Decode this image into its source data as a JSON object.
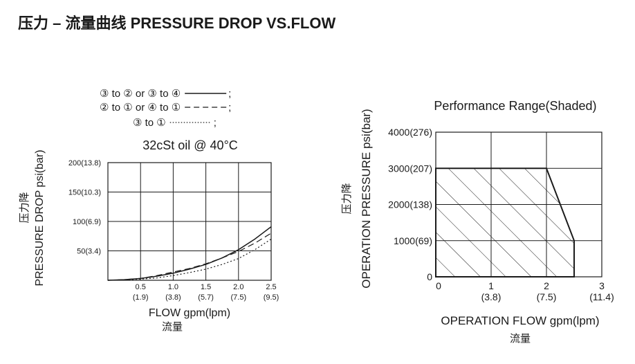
{
  "page": {
    "title": "压力 – 流量曲线 PRESSURE DROP VS.FLOW"
  },
  "chart_data": [
    {
      "type": "line",
      "legend": [
        {
          "label": "③ to ② or ③ to ④",
          "style": "solid",
          "terminator": ";"
        },
        {
          "label": "② to ① or ④ to ①",
          "style": "dashed",
          "terminator": ";"
        },
        {
          "label": "③ to ①",
          "style": "dotted",
          "terminator": ";"
        }
      ],
      "title": "32cSt oil @ 40°C",
      "ylabel": "PRESSURE DROP psi(bar)",
      "ylabel_cn": "压力降",
      "xlabel": "FLOW gpm(lpm)",
      "xlabel_cn": "流量",
      "xlim": [
        0,
        2.5
      ],
      "ylim": [
        0,
        200
      ],
      "x_ticks": [
        {
          "value": 0.5,
          "label": "0.5",
          "sublabel": "(1.9)"
        },
        {
          "value": 1.0,
          "label": "1.0",
          "sublabel": "(3.8)"
        },
        {
          "value": 1.5,
          "label": "1.5",
          "sublabel": "(5.7)"
        },
        {
          "value": 2.0,
          "label": "2.0",
          "sublabel": "(7.5)"
        },
        {
          "value": 2.5,
          "label": "2.5",
          "sublabel": "(9.5)"
        }
      ],
      "y_ticks": [
        {
          "value": 50,
          "label": "50(3.4)"
        },
        {
          "value": 100,
          "label": "100(6.9)"
        },
        {
          "value": 150,
          "label": "150(10.3)"
        },
        {
          "value": 200,
          "label": "200(13.8)"
        }
      ],
      "series": [
        {
          "name": "③ to ② or ③ to ④",
          "style": "solid",
          "x": [
            0,
            0.25,
            0.5,
            0.75,
            1.0,
            1.25,
            1.5,
            1.75,
            2.0,
            2.25,
            2.5
          ],
          "y": [
            0,
            1,
            3,
            7,
            12,
            19,
            27,
            38,
            52,
            70,
            91
          ]
        },
        {
          "name": "② to ① or ④ to ①",
          "style": "dashed",
          "x": [
            0,
            0.25,
            0.5,
            0.75,
            1.0,
            1.25,
            1.5,
            1.75,
            2.0,
            2.25,
            2.5
          ],
          "y": [
            0,
            1,
            3,
            8,
            14,
            20,
            28,
            38,
            49,
            63,
            80
          ]
        },
        {
          "name": "③ to ①",
          "style": "dotted",
          "x": [
            0,
            0.25,
            0.5,
            0.75,
            1.0,
            1.25,
            1.5,
            1.75,
            2.0,
            2.25,
            2.5
          ],
          "y": [
            0,
            0.5,
            2,
            4,
            8,
            13,
            19,
            27,
            37,
            52,
            70
          ]
        }
      ]
    },
    {
      "type": "area",
      "title": "Performance Range(Shaded)",
      "ylabel": "OPERATION PRESSURE psi(bar)",
      "ylabel_cn": "压力降",
      "xlabel": "OPERATION FLOW gpm(lpm)",
      "xlabel_cn": "流量",
      "xlim": [
        0,
        3
      ],
      "ylim": [
        0,
        4000
      ],
      "x_ticks": [
        {
          "value": 0,
          "label": "0",
          "sublabel": ""
        },
        {
          "value": 1,
          "label": "1",
          "sublabel": "(3.8)"
        },
        {
          "value": 2,
          "label": "2",
          "sublabel": "(7.5)"
        },
        {
          "value": 3,
          "label": "3",
          "sublabel": "(11.4)"
        }
      ],
      "y_ticks": [
        {
          "value": 0,
          "label": "0"
        },
        {
          "value": 1000,
          "label": "1000(69)"
        },
        {
          "value": 2000,
          "label": "2000(138)"
        },
        {
          "value": 3000,
          "label": "3000(207)"
        },
        {
          "value": 4000,
          "label": "4000(276)"
        }
      ],
      "region": {
        "x": [
          0,
          2,
          2.5,
          2.5,
          0
        ],
        "y": [
          3000,
          3000,
          1000,
          0,
          0
        ]
      }
    }
  ]
}
